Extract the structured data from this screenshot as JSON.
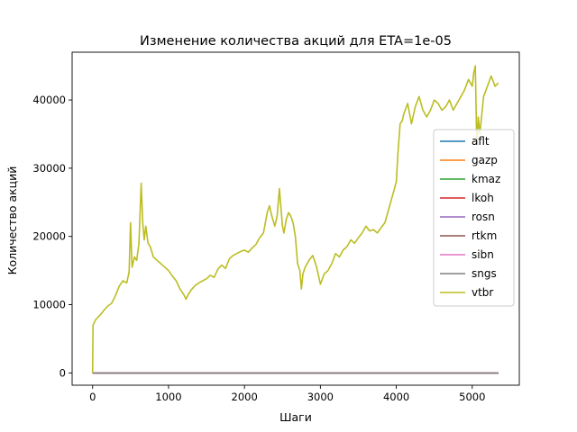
{
  "chart_data": {
    "type": "line",
    "title": "Изменение количества акций для ETA=1e-05",
    "xlabel": "Шаги",
    "ylabel": "Количество акций",
    "xlim": [
      -270,
      5620
    ],
    "ylim": [
      -1800,
      47000
    ],
    "x_ticks": [
      0,
      1000,
      2000,
      3000,
      4000,
      5000
    ],
    "y_ticks": [
      0,
      10000,
      20000,
      30000,
      40000
    ],
    "x_tick_labels": [
      "0",
      "1000",
      "2000",
      "3000",
      "4000",
      "5000"
    ],
    "y_tick_labels": [
      "0",
      "10000",
      "20000",
      "30000",
      "40000"
    ],
    "grid": false,
    "legend_position": "center-right",
    "series": [
      {
        "name": "aflt",
        "color": "#1f77b4",
        "x": [
          0,
          5343
        ],
        "y": [
          0,
          0
        ]
      },
      {
        "name": "gazp",
        "color": "#ff7f0e",
        "x": [
          0,
          5343
        ],
        "y": [
          0,
          0
        ]
      },
      {
        "name": "kmaz",
        "color": "#2ca02c",
        "x": [
          0,
          5343
        ],
        "y": [
          0,
          0
        ]
      },
      {
        "name": "lkoh",
        "color": "#d62728",
        "x": [
          0,
          5343
        ],
        "y": [
          0,
          0
        ]
      },
      {
        "name": "rosn",
        "color": "#9467bd",
        "x": [
          0,
          5343
        ],
        "y": [
          0,
          0
        ]
      },
      {
        "name": "rtkm",
        "color": "#8c564b",
        "x": [
          0,
          5343
        ],
        "y": [
          0,
          0
        ]
      },
      {
        "name": "sibn",
        "color": "#e377c2",
        "x": [
          0,
          5343
        ],
        "y": [
          0,
          0
        ]
      },
      {
        "name": "sngs",
        "color": "#7f7f7f",
        "x": [
          0,
          5343
        ],
        "y": [
          0,
          0
        ]
      },
      {
        "name": "vtbr",
        "color": "#bcbd22",
        "x": [
          0,
          5,
          40,
          100,
          150,
          200,
          250,
          300,
          350,
          400,
          450,
          480,
          500,
          520,
          550,
          580,
          610,
          640,
          660,
          680,
          700,
          730,
          760,
          800,
          850,
          900,
          950,
          1000,
          1050,
          1100,
          1150,
          1200,
          1230,
          1260,
          1300,
          1350,
          1400,
          1450,
          1500,
          1550,
          1600,
          1650,
          1700,
          1750,
          1800,
          1850,
          1900,
          1950,
          2000,
          2050,
          2100,
          2150,
          2200,
          2250,
          2300,
          2330,
          2360,
          2400,
          2430,
          2460,
          2490,
          2500,
          2520,
          2550,
          2580,
          2610,
          2640,
          2670,
          2700,
          2730,
          2750,
          2770,
          2800,
          2850,
          2900,
          2950,
          3000,
          3050,
          3100,
          3150,
          3200,
          3250,
          3300,
          3350,
          3400,
          3450,
          3500,
          3550,
          3600,
          3650,
          3700,
          3750,
          3800,
          3850,
          3900,
          3950,
          4000,
          4020,
          4050,
          4080,
          4100,
          4150,
          4200,
          4250,
          4300,
          4350,
          4400,
          4450,
          4500,
          4550,
          4600,
          4650,
          4700,
          4750,
          4800,
          4850,
          4900,
          4950,
          5000,
          5020,
          5040,
          5060,
          5080,
          5100,
          5150,
          5200,
          5250,
          5300,
          5343
        ],
        "y": [
          0,
          7000,
          7800,
          8500,
          9200,
          9800,
          10200,
          11300,
          12700,
          13500,
          13200,
          14800,
          22000,
          15500,
          17000,
          16500,
          19000,
          27800,
          22000,
          19500,
          21500,
          19000,
          18500,
          17000,
          16500,
          16000,
          15500,
          15000,
          14200,
          13500,
          12300,
          11500,
          10800,
          11500,
          12200,
          12800,
          13200,
          13500,
          13800,
          14300,
          14000,
          15200,
          15800,
          15300,
          16700,
          17200,
          17500,
          17800,
          18000,
          17700,
          18300,
          18800,
          19800,
          20500,
          23500,
          24500,
          23000,
          21500,
          23000,
          27000,
          23000,
          21500,
          20500,
          22500,
          23500,
          23000,
          22000,
          20000,
          16000,
          15000,
          12300,
          14500,
          15500,
          16500,
          17200,
          15500,
          13000,
          14500,
          15000,
          16000,
          17500,
          17000,
          18000,
          18500,
          19500,
          19000,
          19800,
          20500,
          21500,
          20800,
          21000,
          20500,
          21300,
          22000,
          24000,
          26000,
          28000,
          32000,
          36500,
          37000,
          38000,
          39500,
          36500,
          39000,
          40500,
          38500,
          37500,
          38500,
          40000,
          39500,
          38500,
          39000,
          40000,
          38500,
          39500,
          40500,
          41500,
          43000,
          42000,
          44000,
          45000,
          33500,
          37500,
          35000,
          40500,
          42000,
          43500,
          42000,
          42500
        ]
      }
    ]
  }
}
